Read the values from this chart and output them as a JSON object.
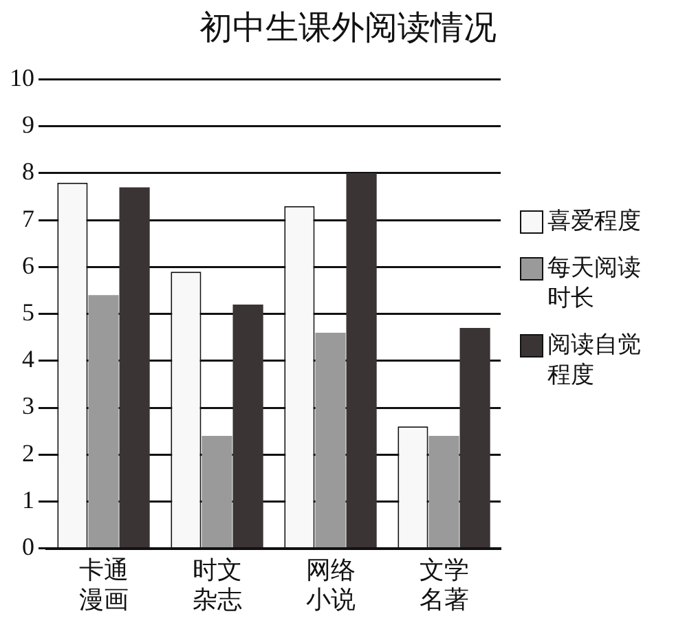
{
  "chart_data": {
    "type": "bar",
    "title": "初中生课外阅读情况",
    "categories": [
      "卡通漫画",
      "时文杂志",
      "网络小说",
      "文学名著"
    ],
    "series": [
      {
        "name": "喜爱程度",
        "color": "#f8f8f8",
        "values": [
          7.8,
          5.9,
          7.3,
          2.6
        ]
      },
      {
        "name": "每天阅读时长",
        "color": "#9a9a9a",
        "values": [
          5.4,
          2.4,
          4.6,
          2.4
        ]
      },
      {
        "name": "阅读自觉程度",
        "color": "#3a3434",
        "values": [
          7.7,
          5.2,
          8.0,
          4.7
        ]
      }
    ],
    "ylim": [
      0,
      10
    ],
    "yticks": [
      0,
      1,
      2,
      3,
      4,
      5,
      6,
      7,
      8,
      9,
      10
    ],
    "grid": "y",
    "legend": "right"
  }
}
